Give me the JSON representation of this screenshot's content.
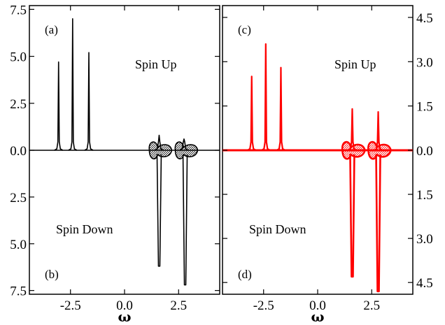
{
  "chart_data": [
    {
      "type": "line",
      "panel_top": "(a)",
      "panel_bottom": "(b)",
      "annotation_top": "Spin Up",
      "annotation_bottom": "Spin Down",
      "xlabel": "ω",
      "color": "#000000",
      "xlim": [
        -4.4,
        4.4
      ],
      "y_up_lim": [
        0,
        7.7
      ],
      "y_down_lim": [
        0,
        7.7
      ],
      "y_ticks": [
        "7.5",
        "5.0",
        "2.5",
        "0.0",
        "2.5",
        "5.0",
        "7.5"
      ],
      "y_tick_values": [
        7.5,
        5.0,
        2.5,
        0.0,
        -2.5,
        -5.0,
        -7.5
      ],
      "x_ticks": [
        "-2.5",
        "0.0",
        "2.5"
      ],
      "x_tick_values": [
        -2.5,
        0.0,
        2.5
      ],
      "spin_up_peaks": [
        {
          "x": -3.05,
          "height": 4.7
        },
        {
          "x": -2.4,
          "height": 7.0
        },
        {
          "x": -1.65,
          "height": 5.2
        }
      ],
      "spin_up_small": [
        {
          "x": 1.6,
          "height": 0.8
        },
        {
          "x": 2.75,
          "height": 0.6
        }
      ],
      "spin_down_peaks": [
        {
          "x": 1.6,
          "height": 6.2
        },
        {
          "x": 2.8,
          "height": 7.2
        }
      ]
    },
    {
      "type": "line",
      "panel_top": "(c)",
      "panel_bottom": "(d)",
      "annotation_top": "Spin Up",
      "annotation_bottom": "Spin Down",
      "xlabel": "ω",
      "color": "#ff0000",
      "xlim": [
        -4.4,
        4.4
      ],
      "y_up_lim": [
        0,
        4.9
      ],
      "y_down_lim": [
        0,
        4.9
      ],
      "y_ticks": [
        "4.5",
        "3.0",
        "1.5",
        "0.0",
        "1.5",
        "3.0",
        "4.5"
      ],
      "y_tick_values": [
        4.5,
        3.0,
        1.5,
        0.0,
        -1.5,
        -3.0,
        -4.5
      ],
      "x_ticks": [
        "-2.5",
        "0.0",
        "2.5"
      ],
      "x_tick_values": [
        -2.5,
        0.0,
        2.5
      ],
      "spin_up_peaks": [
        {
          "x": -3.05,
          "height": 2.5
        },
        {
          "x": -2.4,
          "height": 3.6
        },
        {
          "x": -1.7,
          "height": 2.8
        },
        {
          "x": 1.6,
          "height": 1.4
        },
        {
          "x": 2.8,
          "height": 1.3
        }
      ],
      "spin_down_peaks": [
        {
          "x": 1.6,
          "height": 4.3
        },
        {
          "x": 2.8,
          "height": 4.8
        }
      ]
    }
  ]
}
